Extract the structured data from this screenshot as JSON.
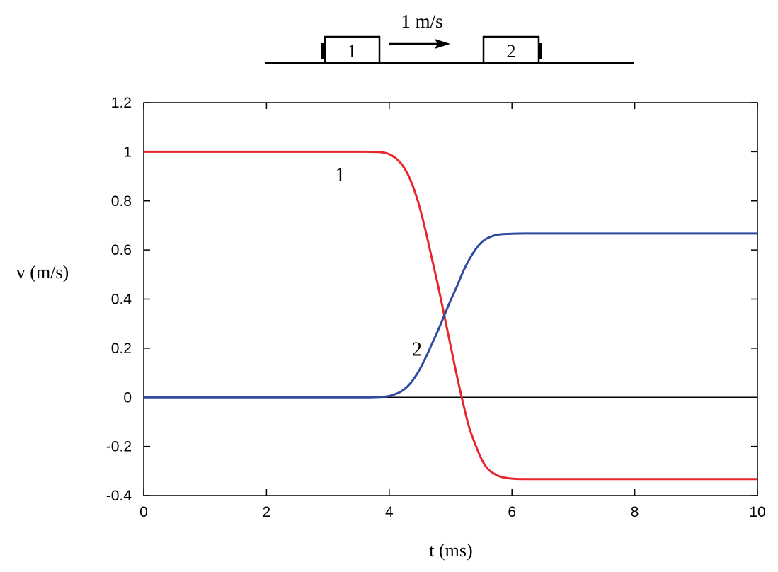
{
  "diagram": {
    "velocity_label": "1 m/s",
    "block1_label": "1",
    "block2_label": "2"
  },
  "chart_data": {
    "type": "line",
    "xlabel": "t (ms)",
    "ylabel": "v (m/s)",
    "xlim": [
      0,
      10
    ],
    "ylim": [
      -0.4,
      1.2
    ],
    "xticks": [
      0,
      2,
      4,
      6,
      8,
      10
    ],
    "yticks": [
      -0.4,
      -0.2,
      0,
      0.2,
      0.4,
      0.6,
      0.8,
      1,
      1.2
    ],
    "xtick_labels": [
      "0",
      "2",
      "4",
      "6",
      "8",
      "10"
    ],
    "ytick_labels": [
      "-0.4",
      "-0.2",
      "0",
      "0.2",
      "0.4",
      "0.6",
      "0.8",
      "1",
      "1.2"
    ],
    "zero_line": true,
    "grid": false,
    "series": [
      {
        "name": "1",
        "color": "#e8262d",
        "x": [
          0,
          1,
          2,
          3,
          3.6,
          3.8,
          3.9,
          4.0,
          4.1,
          4.2,
          4.3,
          4.4,
          4.5,
          4.6,
          4.7,
          4.8,
          4.9,
          5.0,
          5.1,
          5.2,
          5.3,
          5.4,
          5.5,
          5.6,
          5.7,
          5.8,
          5.9,
          6.0,
          6.2,
          6.5,
          7,
          8,
          9,
          10
        ],
        "values": [
          1,
          1,
          1,
          1,
          1,
          0.999,
          0.997,
          0.99,
          0.975,
          0.95,
          0.91,
          0.85,
          0.77,
          0.67,
          0.56,
          0.45,
          0.33,
          0.21,
          0.09,
          -0.02,
          -0.12,
          -0.19,
          -0.25,
          -0.29,
          -0.31,
          -0.322,
          -0.328,
          -0.331,
          -0.333,
          -0.333,
          -0.333,
          -0.333,
          -0.333,
          -0.333
        ]
      },
      {
        "name": "2",
        "color": "#2f4aa0",
        "x": [
          0,
          1,
          2,
          3,
          3.6,
          3.8,
          3.9,
          4.0,
          4.1,
          4.2,
          4.3,
          4.4,
          4.5,
          4.6,
          4.7,
          4.8,
          4.9,
          5.0,
          5.1,
          5.2,
          5.3,
          5.4,
          5.5,
          5.6,
          5.7,
          5.8,
          5.9,
          6.0,
          6.2,
          6.5,
          7,
          8,
          9,
          10
        ],
        "values": [
          0,
          0,
          0,
          0,
          0,
          0.001,
          0.002,
          0.005,
          0.013,
          0.025,
          0.045,
          0.075,
          0.115,
          0.165,
          0.22,
          0.275,
          0.335,
          0.395,
          0.45,
          0.51,
          0.56,
          0.6,
          0.63,
          0.648,
          0.658,
          0.663,
          0.665,
          0.666,
          0.667,
          0.667,
          0.667,
          0.667,
          0.667,
          0.667
        ]
      }
    ],
    "annotations": [
      {
        "text": "1",
        "x": 3.2,
        "y": 0.88
      },
      {
        "text": "2",
        "x": 4.45,
        "y": 0.17
      }
    ]
  }
}
